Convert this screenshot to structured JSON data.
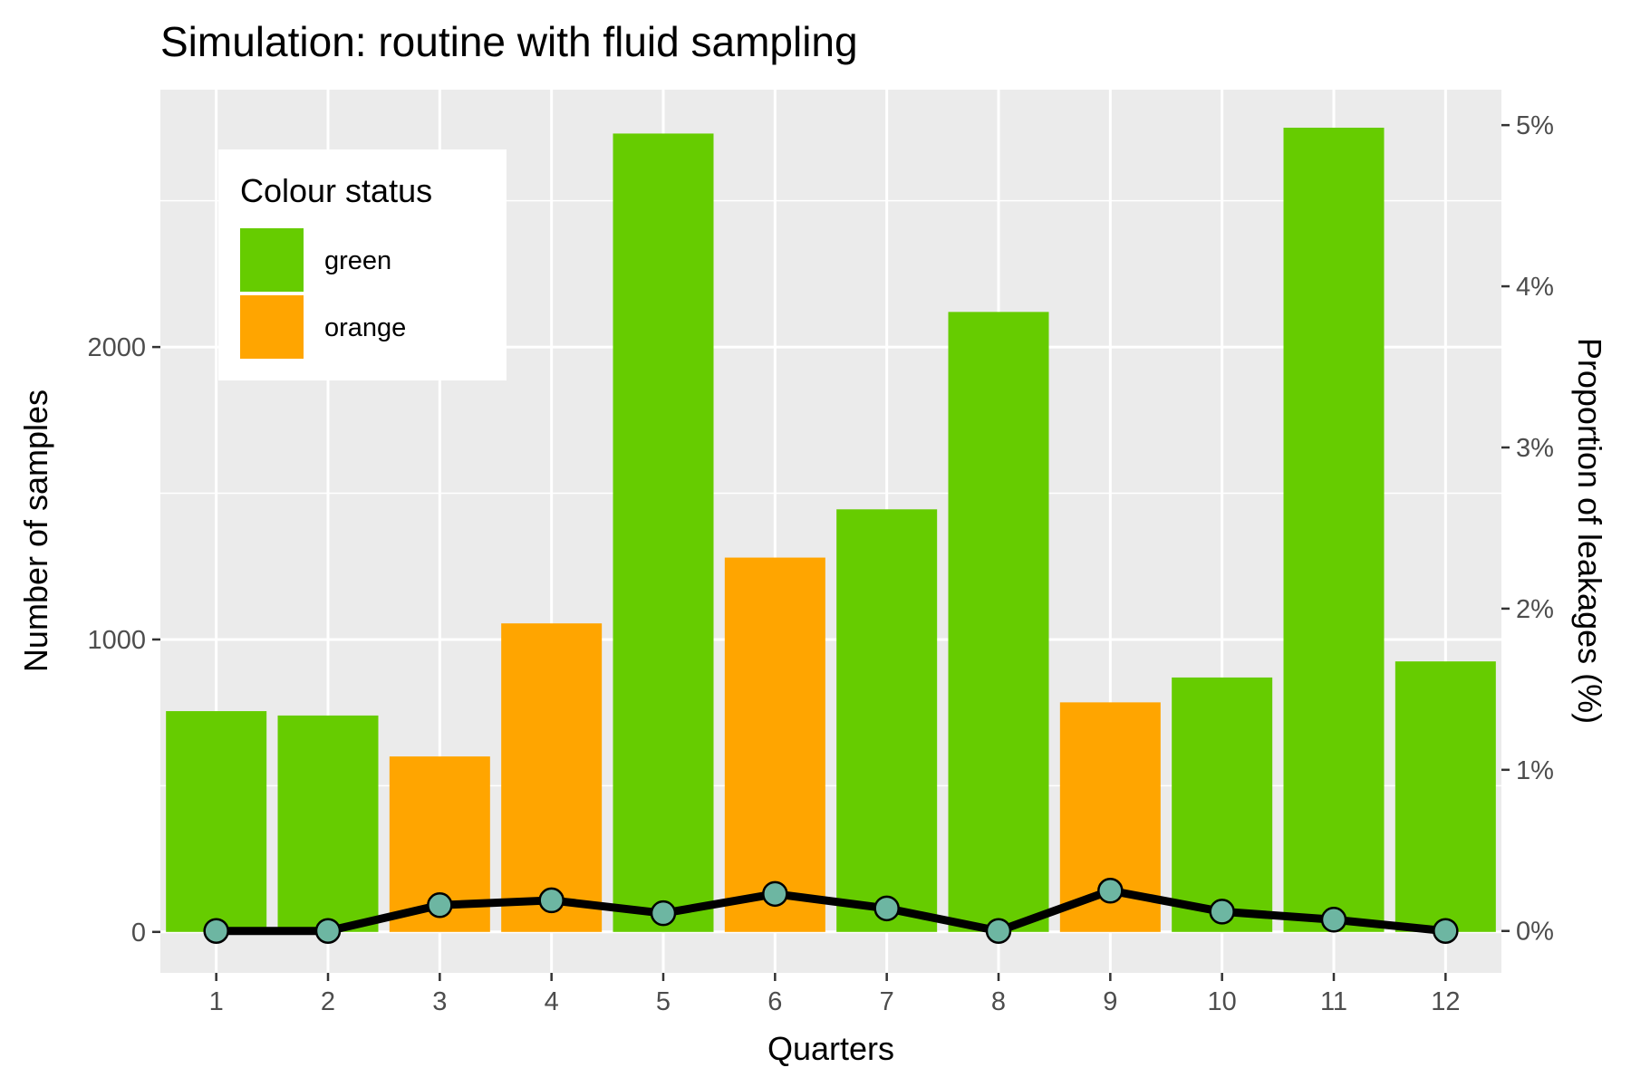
{
  "chart_data": {
    "type": "bar",
    "title": "Simulation: routine with fluid sampling",
    "xlabel": "Quarters",
    "ylabel": "Number of samples",
    "y2label": "Proportion of leakages (%)",
    "categories": [
      "1",
      "2",
      "3",
      "4",
      "5",
      "6",
      "7",
      "8",
      "9",
      "10",
      "11",
      "12"
    ],
    "ylim": [
      -140,
      2880
    ],
    "y_ticks": [
      0,
      1000,
      2000
    ],
    "y_tick_labels": [
      "0",
      "1000",
      "2000"
    ],
    "y2lim": [
      -0.26,
      5.22
    ],
    "y2_ticks": [
      0,
      1,
      2,
      3,
      4,
      5
    ],
    "y2_tick_labels": [
      "0%",
      "1%",
      "2%",
      "3%",
      "4%",
      "5%"
    ],
    "grid": true,
    "colors": {
      "green": "#66CC00",
      "orange": "#FFA500",
      "panel": "#EBEBEB",
      "point": "#6DB6A2",
      "line": "#000000"
    },
    "series": [
      {
        "type": "bar",
        "axis": "left",
        "values": [
          755,
          740,
          600,
          1055,
          2730,
          1280,
          1445,
          2120,
          785,
          870,
          2750,
          925
        ],
        "status": [
          "green",
          "green",
          "orange",
          "orange",
          "green",
          "orange",
          "green",
          "green",
          "orange",
          "green",
          "green",
          "green"
        ]
      },
      {
        "type": "line",
        "axis": "right",
        "values": [
          0.0,
          0.0,
          0.16,
          0.19,
          0.11,
          0.23,
          0.14,
          0.0,
          0.25,
          0.12,
          0.07,
          0.0
        ]
      }
    ],
    "legend": {
      "title": "Colour status",
      "position": "top-left",
      "items": [
        {
          "label": "green",
          "color": "#66CC00"
        },
        {
          "label": "orange",
          "color": "#FFA500"
        }
      ]
    }
  }
}
